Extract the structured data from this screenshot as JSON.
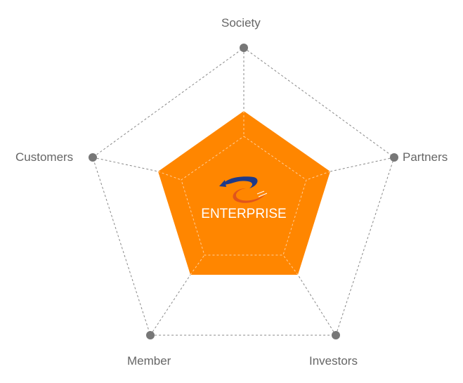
{
  "diagram": {
    "center_label": "ENTERPRISE",
    "nodes": [
      {
        "label": "Society"
      },
      {
        "label": "Partners"
      },
      {
        "label": "Investors"
      },
      {
        "label": "Member"
      },
      {
        "label": "Customers"
      }
    ],
    "colors": {
      "fill": "#FF8600",
      "node": "#777777",
      "line": "#888888",
      "text": "#666666"
    },
    "logo_icon": "enterprise-swoosh-logo"
  }
}
